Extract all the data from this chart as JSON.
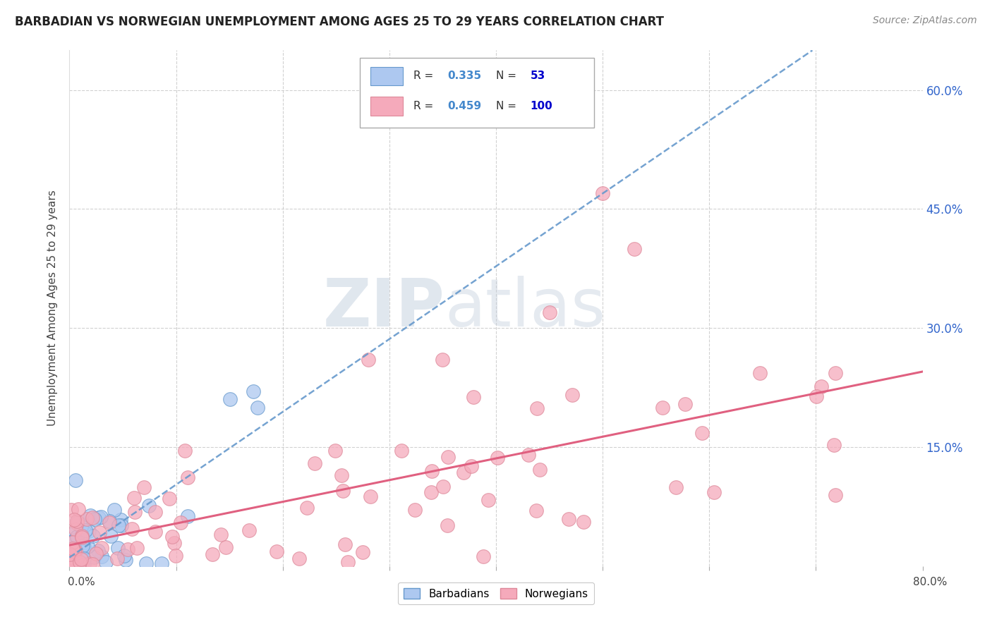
{
  "title": "BARBADIAN VS NORWEGIAN UNEMPLOYMENT AMONG AGES 25 TO 29 YEARS CORRELATION CHART",
  "source": "Source: ZipAtlas.com",
  "ylabel": "Unemployment Among Ages 25 to 29 years",
  "xmin": 0.0,
  "xmax": 0.8,
  "ymin": 0.0,
  "ymax": 0.65,
  "ytick_vals": [
    0.0,
    0.15,
    0.3,
    0.45,
    0.6
  ],
  "ytick_labels": [
    "",
    "15.0%",
    "30.0%",
    "45.0%",
    "60.0%"
  ],
  "barbadian_color": "#adc8f0",
  "barbadian_edge": "#6699cc",
  "norwegian_color": "#f5aabb",
  "norwegian_edge": "#dd8899",
  "barbadian_line_color": "#6699cc",
  "norwegian_line_color": "#e06080",
  "barbadian_R": 0.335,
  "barbadian_N": 53,
  "norwegian_R": 0.459,
  "norwegian_N": 100,
  "watermark_zip": "ZIP",
  "watermark_atlas": "atlas",
  "legend_R_color": "#4488cc",
  "legend_N_color": "#0000cc",
  "background_color": "#ffffff",
  "grid_color": "#cccccc",
  "title_color": "#222222",
  "ylabel_color": "#444444",
  "source_color": "#888888",
  "axis_label_color": "#444444"
}
